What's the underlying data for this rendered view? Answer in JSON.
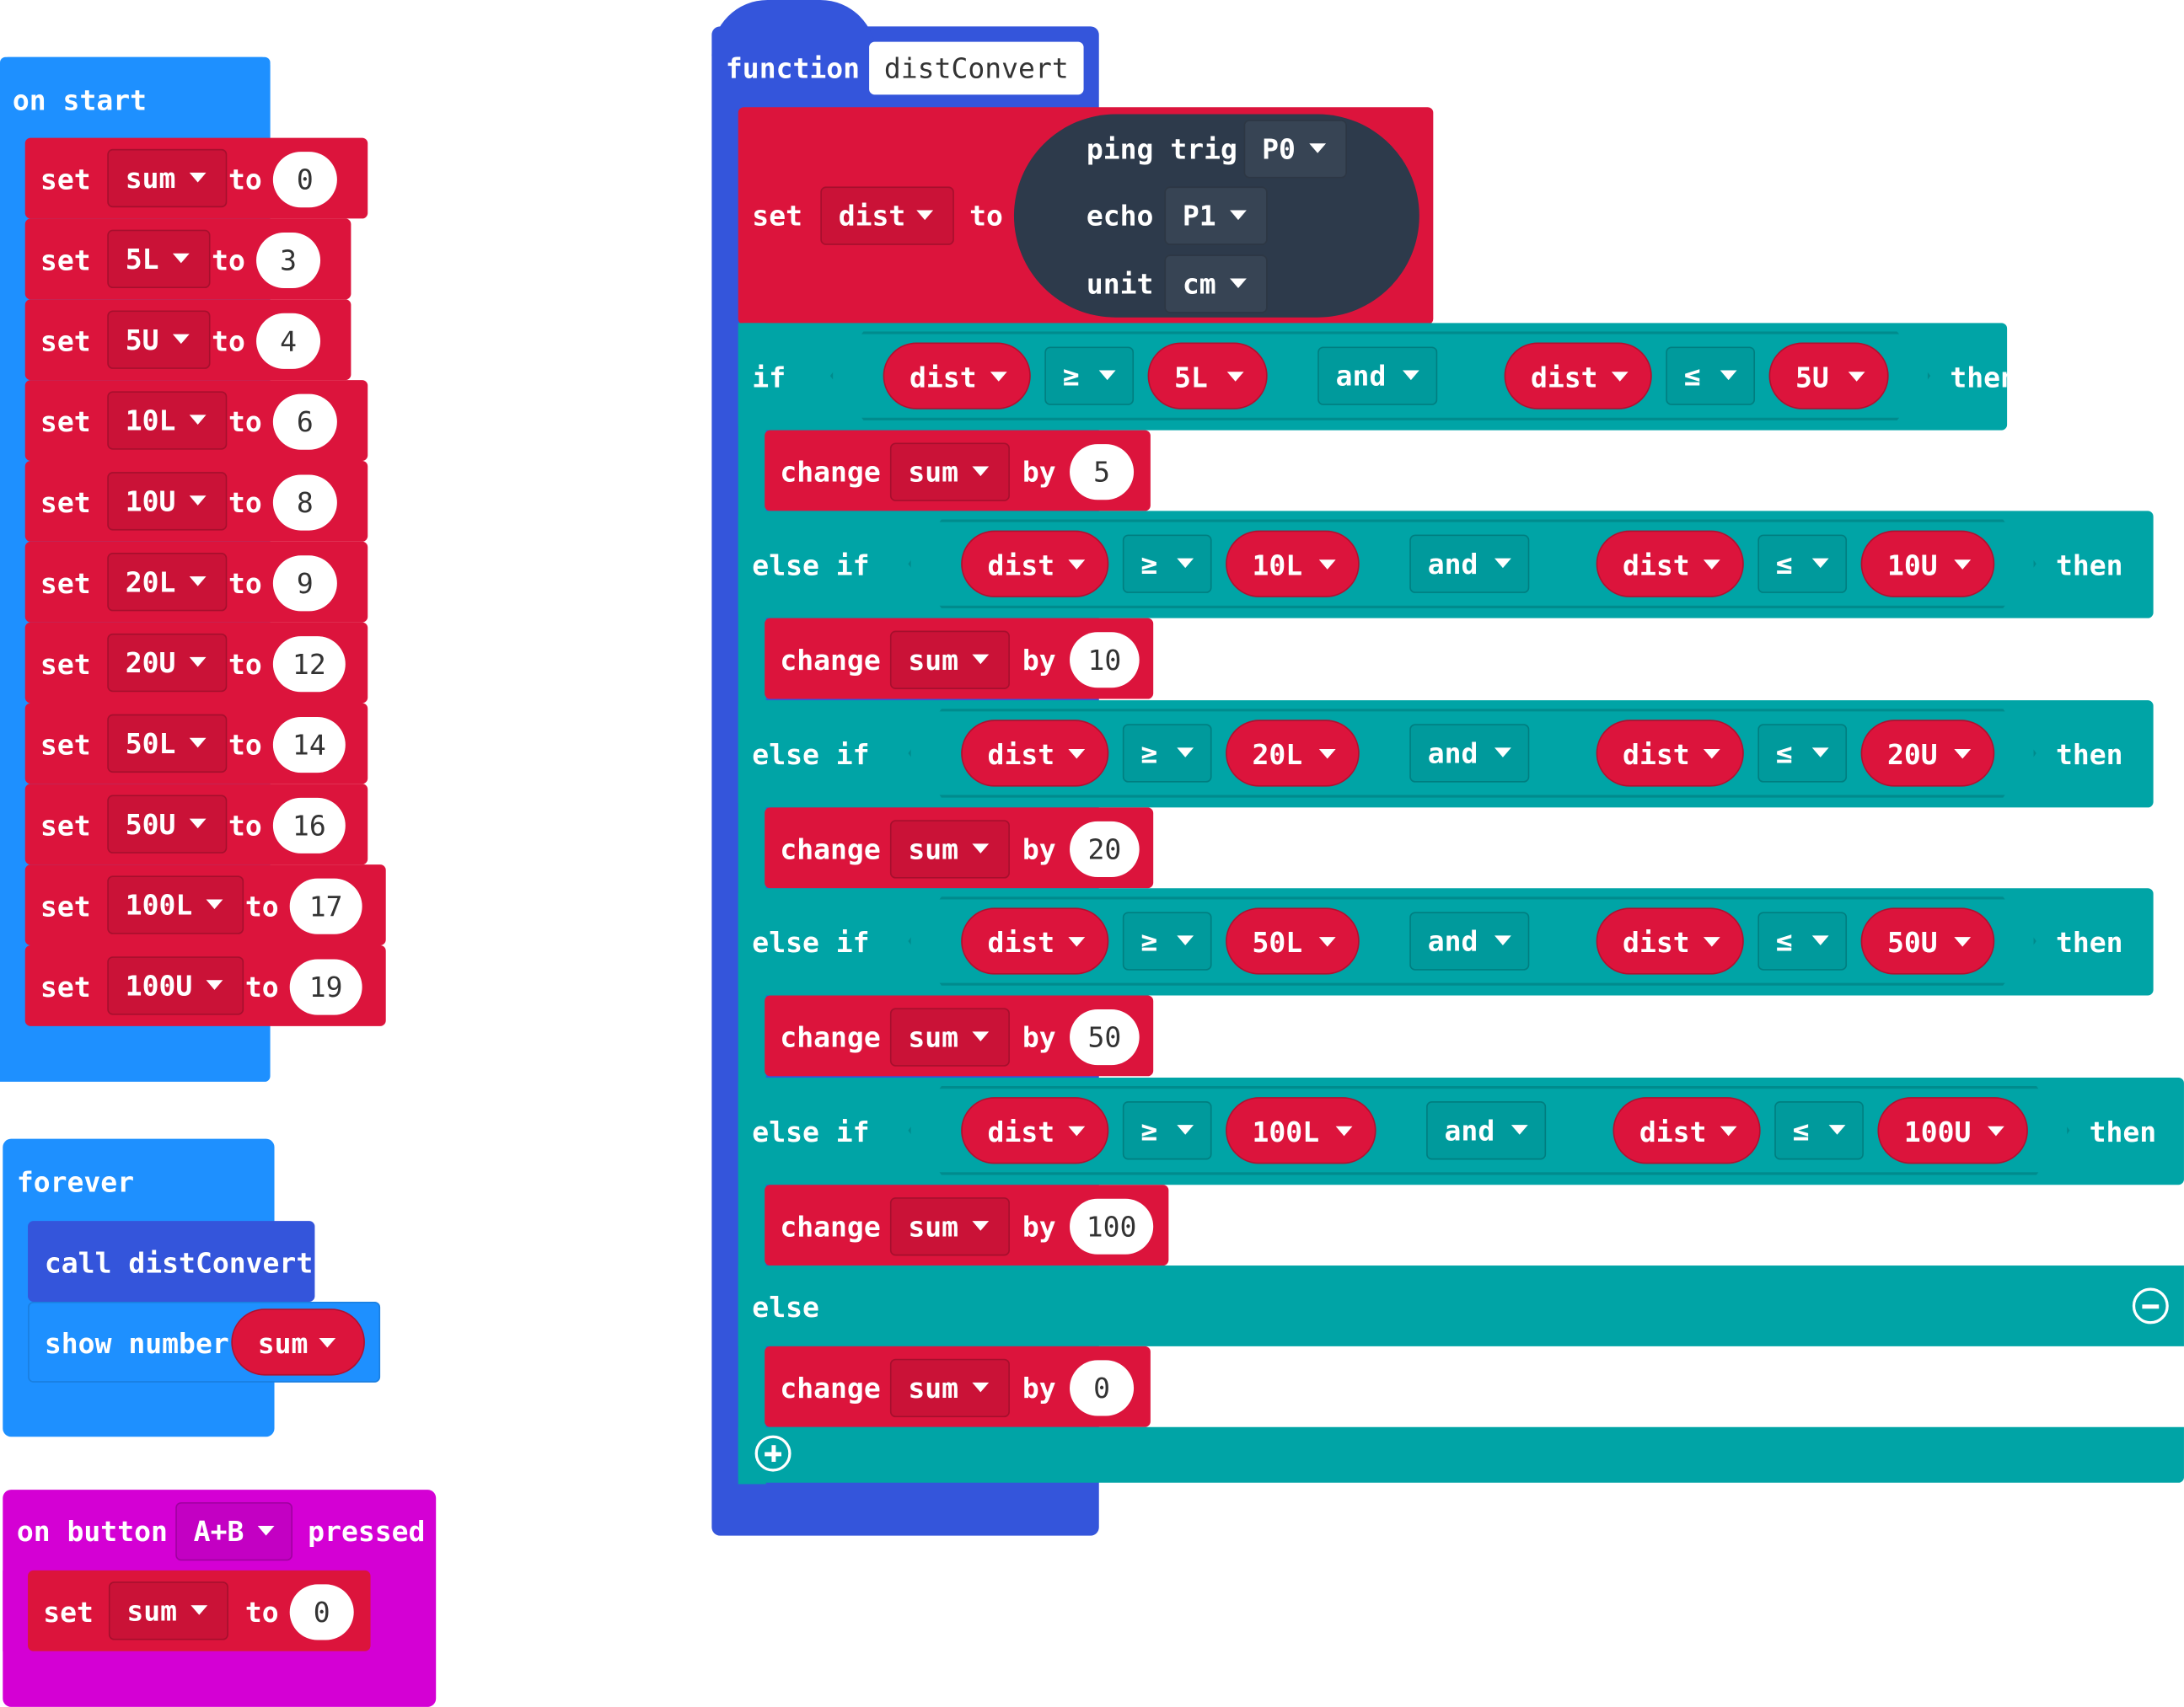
{
  "on_start": {
    "label": "on start",
    "statements": [
      {
        "kw_set": "set",
        "var": "sum",
        "kw_to": "to",
        "value": "0"
      },
      {
        "kw_set": "set",
        "var": "5L",
        "kw_to": "to",
        "value": "3"
      },
      {
        "kw_set": "set",
        "var": "5U",
        "kw_to": "to",
        "value": "4"
      },
      {
        "kw_set": "set",
        "var": "10L",
        "kw_to": "to",
        "value": "6"
      },
      {
        "kw_set": "set",
        "var": "10U",
        "kw_to": "to",
        "value": "8"
      },
      {
        "kw_set": "set",
        "var": "20L",
        "kw_to": "to",
        "value": "9"
      },
      {
        "kw_set": "set",
        "var": "20U",
        "kw_to": "to",
        "value": "12"
      },
      {
        "kw_set": "set",
        "var": "50L",
        "kw_to": "to",
        "value": "14"
      },
      {
        "kw_set": "set",
        "var": "50U",
        "kw_to": "to",
        "value": "16"
      },
      {
        "kw_set": "set",
        "var": "100L",
        "kw_to": "to",
        "value": "17"
      },
      {
        "kw_set": "set",
        "var": "100U",
        "kw_to": "to",
        "value": "19"
      }
    ]
  },
  "forever": {
    "label": "forever",
    "call_text": "call distConvert",
    "show_label": "show number",
    "show_var": "sum"
  },
  "on_button": {
    "label_on": "on button",
    "button": "A+B",
    "label_pressed": "pressed",
    "kw_set": "set",
    "var": "sum",
    "kw_to": "to",
    "value": "0"
  },
  "function": {
    "kw": "function",
    "name": "distConvert",
    "set_ping": {
      "kw_set": "set",
      "var": "dist",
      "kw_to": "to",
      "ping_label": "ping trig",
      "trig_pin": "P0",
      "echo_label": "echo",
      "echo_pin": "P1",
      "unit_label": "unit",
      "unit": "cm"
    },
    "kw_if": "if",
    "kw_else_if": "else if",
    "kw_then": "then",
    "kw_else": "else",
    "kw_and": "and",
    "kw_change": "change",
    "kw_by": "by",
    "branches": [
      {
        "lhs": "dist",
        "op1": "≥",
        "low": "5L",
        "and": "and",
        "rhs": "dist",
        "op2": "≤",
        "high": "5U",
        "change_var": "sum",
        "amount": "5"
      },
      {
        "lhs": "dist",
        "op1": "≥",
        "low": "10L",
        "and": "and",
        "rhs": "dist",
        "op2": "≤",
        "high": "10U",
        "change_var": "sum",
        "amount": "10"
      },
      {
        "lhs": "dist",
        "op1": "≥",
        "low": "20L",
        "and": "and",
        "rhs": "dist",
        "op2": "≤",
        "high": "20U",
        "change_var": "sum",
        "amount": "20"
      },
      {
        "lhs": "dist",
        "op1": "≥",
        "low": "50L",
        "and": "and",
        "rhs": "dist",
        "op2": "≤",
        "high": "50U",
        "change_var": "sum",
        "amount": "50"
      },
      {
        "lhs": "dist",
        "op1": "≥",
        "low": "100L",
        "and": "and",
        "rhs": "dist",
        "op2": "≤",
        "high": "100U",
        "change_var": "sum",
        "amount": "100"
      }
    ],
    "else_change": {
      "var": "sum",
      "amount": "0"
    }
  },
  "colors": {
    "event_blue": "#1e90ff",
    "function_blue": "#3455db",
    "input_pink": "#d400d4",
    "variables_red": "#dc143c",
    "logic_teal": "#00a4a6",
    "sonar_dark": "#2d3a4b"
  },
  "icons": {
    "dropdown": "caret-down-icon",
    "remove": "minus-circle-icon",
    "add": "plus-circle-icon"
  }
}
